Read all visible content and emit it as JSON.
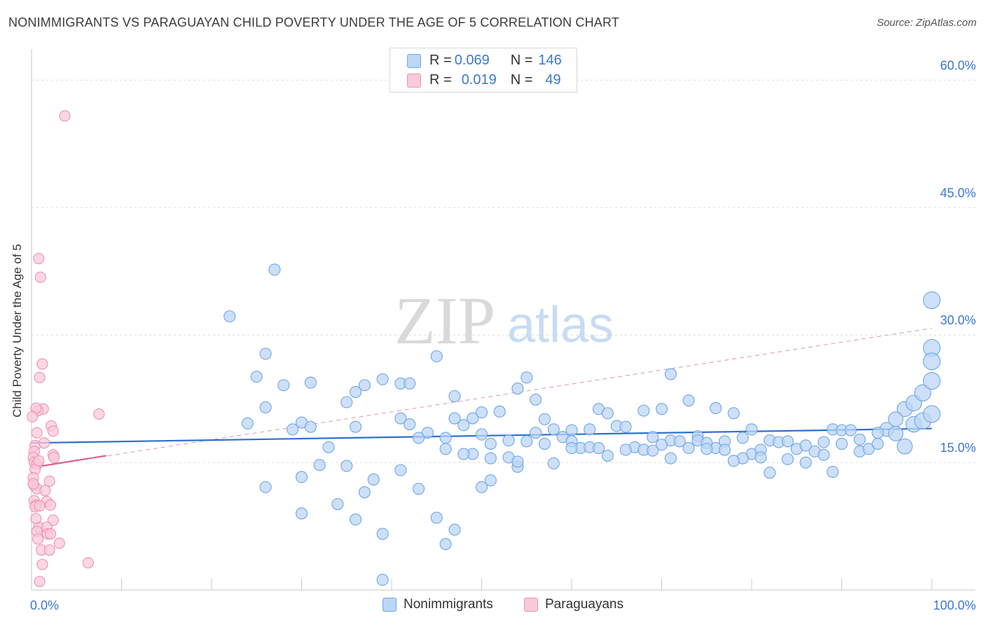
{
  "title": "NONIMMIGRANTS VS PARAGUAYAN CHILD POVERTY UNDER THE AGE OF 5 CORRELATION CHART",
  "source": "Source: ZipAtlas.com",
  "watermark": {
    "zip": "ZIP",
    "atlas": "atlas"
  },
  "stats": [
    {
      "r_label": "R = ",
      "r_value": "0.069",
      "n_label": "N = ",
      "n_value": "146",
      "color": "#6ea6e8",
      "fill": "#bcd6f5"
    },
    {
      "r_label": "R = ",
      "r_value": "0.019",
      "n_label": "N = ",
      "n_value": "49",
      "color": "#f08fb0",
      "fill": "#f9cadb"
    }
  ],
  "legend": [
    {
      "label": "Nonimmigrants",
      "color": "#6ea6e8",
      "fill": "#bcd6f5"
    },
    {
      "label": "Paraguayans",
      "color": "#f08fb0",
      "fill": "#f9cadb"
    }
  ],
  "chart_data": {
    "type": "scatter",
    "title": "NONIMMIGRANTS VS PARAGUAYAN CHILD POVERTY UNDER THE AGE OF 5 CORRELATION CHART",
    "xlabel": "",
    "ylabel": "Child Poverty Under the Age of 5",
    "xlim": [
      0,
      100
    ],
    "ylim": [
      0,
      63
    ],
    "x_tick_labels": [
      {
        "value": 0,
        "label": "0.0%"
      },
      {
        "value": 100,
        "label": "100.0%"
      }
    ],
    "y_tick_labels": [
      {
        "value": 15,
        "label": "15.0%"
      },
      {
        "value": 30,
        "label": "30.0%"
      },
      {
        "value": 45,
        "label": "45.0%"
      },
      {
        "value": 60,
        "label": "60.0%"
      }
    ],
    "grid": true,
    "series": [
      {
        "name": "Nonimmigrants",
        "color": "#6ea6e8",
        "fill": "#bcd6f5",
        "trend": {
          "x0": 0,
          "y0": 17.3,
          "x1": 100,
          "y1": 19.0,
          "style": "solid",
          "color": "#2f6fd0"
        },
        "points": [
          [
            27,
            37.7
          ],
          [
            22,
            32.2
          ],
          [
            26,
            27.8
          ],
          [
            45,
            27.5
          ],
          [
            25,
            25.1
          ],
          [
            28,
            24.1
          ],
          [
            31,
            24.4
          ],
          [
            39,
            24.8
          ],
          [
            37,
            24.1
          ],
          [
            41,
            24.3
          ],
          [
            42,
            24.3
          ],
          [
            47,
            22.8
          ],
          [
            36,
            23.3
          ],
          [
            55,
            25.0
          ],
          [
            54,
            23.7
          ],
          [
            71,
            25.4
          ],
          [
            35,
            22.1
          ],
          [
            26,
            21.5
          ],
          [
            56,
            22.4
          ],
          [
            47,
            20.2
          ],
          [
            41,
            20.2
          ],
          [
            30,
            19.7
          ],
          [
            24,
            19.6
          ],
          [
            31,
            19.2
          ],
          [
            36,
            19.2
          ],
          [
            42,
            19.5
          ],
          [
            49,
            20.2
          ],
          [
            50,
            20.9
          ],
          [
            52,
            21.0
          ],
          [
            57,
            20.1
          ],
          [
            48,
            19.4
          ],
          [
            56,
            18.5
          ],
          [
            60,
            18.8
          ],
          [
            63,
            21.3
          ],
          [
            64,
            20.8
          ],
          [
            58,
            18.9
          ],
          [
            59,
            18.0
          ],
          [
            62,
            18.9
          ],
          [
            65,
            19.3
          ],
          [
            66,
            19.2
          ],
          [
            68,
            21.1
          ],
          [
            70,
            21.3
          ],
          [
            73,
            22.3
          ],
          [
            76,
            21.4
          ],
          [
            78,
            20.8
          ],
          [
            80,
            18.9
          ],
          [
            74,
            18.1
          ],
          [
            69,
            18.0
          ],
          [
            71,
            17.6
          ],
          [
            72,
            17.5
          ],
          [
            67,
            16.8
          ],
          [
            68,
            16.5
          ],
          [
            70,
            17.1
          ],
          [
            61,
            16.7
          ],
          [
            62,
            16.8
          ],
          [
            60,
            17.5
          ],
          [
            57,
            17.2
          ],
          [
            51,
            17.2
          ],
          [
            50,
            18.3
          ],
          [
            53,
            17.6
          ],
          [
            55,
            17.5
          ],
          [
            46,
            17.9
          ],
          [
            44,
            18.5
          ],
          [
            43,
            17.9
          ],
          [
            53,
            15.6
          ],
          [
            54,
            14.5
          ],
          [
            54,
            15.1
          ],
          [
            58,
            14.9
          ],
          [
            49,
            16.0
          ],
          [
            51,
            15.5
          ],
          [
            46,
            16.6
          ],
          [
            48,
            16.0
          ],
          [
            41,
            14.1
          ],
          [
            35,
            14.6
          ],
          [
            32,
            14.7
          ],
          [
            33,
            16.8
          ],
          [
            29,
            18.9
          ],
          [
            26,
            12.1
          ],
          [
            30,
            13.3
          ],
          [
            38,
            13.0
          ],
          [
            34,
            10.1
          ],
          [
            37,
            11.5
          ],
          [
            43,
            11.9
          ],
          [
            50,
            12.1
          ],
          [
            51,
            12.9
          ],
          [
            36,
            8.3
          ],
          [
            45,
            8.5
          ],
          [
            47,
            7.1
          ],
          [
            39,
            6.6
          ],
          [
            46,
            5.4
          ],
          [
            30,
            9.0
          ],
          [
            39,
            1.2
          ],
          [
            74,
            17.6
          ],
          [
            75,
            17.3
          ],
          [
            76,
            16.7
          ],
          [
            77,
            17.5
          ],
          [
            79,
            17.9
          ],
          [
            80,
            16.0
          ],
          [
            81,
            16.5
          ],
          [
            82,
            17.6
          ],
          [
            83,
            17.4
          ],
          [
            84,
            17.5
          ],
          [
            85,
            16.6
          ],
          [
            86,
            17.0
          ],
          [
            87,
            16.3
          ],
          [
            88,
            17.4
          ],
          [
            89,
            18.9
          ],
          [
            90,
            18.8
          ],
          [
            91,
            18.8
          ],
          [
            92,
            16.3
          ],
          [
            93,
            16.6
          ],
          [
            94,
            17.2
          ],
          [
            95,
            18.9
          ],
          [
            96,
            18.4
          ],
          [
            97,
            16.9
          ],
          [
            98,
            19.5
          ],
          [
            99,
            19.9
          ],
          [
            100,
            20.7
          ],
          [
            97,
            21.3
          ],
          [
            98,
            22.0
          ],
          [
            99,
            23.2
          ],
          [
            100,
            24.6
          ],
          [
            96,
            20.1
          ],
          [
            94,
            18.5
          ],
          [
            92,
            17.7
          ],
          [
            90,
            17.2
          ],
          [
            88,
            15.9
          ],
          [
            86,
            15.0
          ],
          [
            84,
            15.4
          ],
          [
            82,
            13.8
          ],
          [
            81,
            15.6
          ],
          [
            79,
            15.5
          ],
          [
            77,
            16.5
          ],
          [
            75,
            16.6
          ],
          [
            73,
            16.7
          ],
          [
            69,
            16.4
          ],
          [
            66,
            16.5
          ],
          [
            64,
            15.8
          ],
          [
            63,
            16.7
          ],
          [
            60,
            16.7
          ],
          [
            78,
            15.2
          ],
          [
            89,
            13.9
          ],
          [
            100,
            28.5
          ],
          [
            100,
            34.1
          ],
          [
            100,
            26.9
          ],
          [
            71,
            15.5
          ]
        ]
      },
      {
        "name": "Paraguayans",
        "color": "#f08fb0",
        "fill": "#f9cadb",
        "trend": {
          "x0": 0,
          "y0": 14.4,
          "x1": 8.3,
          "y1": 15.8,
          "style": "solid",
          "color": "#e0608a"
        },
        "trend_extended": {
          "x0": 0,
          "y0": 14.4,
          "x1": 100,
          "y1": 30.8,
          "style": "dashed",
          "color": "#e890b0"
        },
        "points": [
          [
            3.7,
            55.8
          ],
          [
            0.8,
            39.0
          ],
          [
            1.0,
            36.8
          ],
          [
            1.2,
            26.6
          ],
          [
            0.9,
            25.0
          ],
          [
            1.3,
            21.3
          ],
          [
            0.7,
            21.1
          ],
          [
            0.5,
            21.4
          ],
          [
            7.5,
            20.7
          ],
          [
            2.2,
            19.3
          ],
          [
            2.4,
            18.7
          ],
          [
            0.6,
            18.5
          ],
          [
            0.4,
            17.0
          ],
          [
            0.3,
            16.3
          ],
          [
            0.2,
            15.6
          ],
          [
            0.3,
            15.0
          ],
          [
            0.6,
            14.8
          ],
          [
            0.4,
            14.2
          ],
          [
            2.4,
            15.9
          ],
          [
            2.5,
            15.6
          ],
          [
            0.2,
            13.2
          ],
          [
            2.0,
            12.8
          ],
          [
            0.3,
            12.3
          ],
          [
            0.6,
            11.9
          ],
          [
            1.5,
            11.7
          ],
          [
            0.3,
            10.5
          ],
          [
            1.7,
            10.4
          ],
          [
            2.1,
            10.0
          ],
          [
            0.5,
            10.0
          ],
          [
            0.4,
            9.8
          ],
          [
            0.9,
            9.9
          ],
          [
            2.4,
            8.2
          ],
          [
            0.8,
            7.4
          ],
          [
            1.7,
            7.4
          ],
          [
            0.6,
            6.9
          ],
          [
            1.8,
            6.6
          ],
          [
            2.1,
            6.6
          ],
          [
            0.7,
            6.0
          ],
          [
            3.1,
            5.5
          ],
          [
            1.1,
            4.7
          ],
          [
            2.0,
            4.7
          ],
          [
            1.2,
            3.0
          ],
          [
            6.3,
            3.2
          ],
          [
            0.9,
            1.0
          ],
          [
            0.1,
            20.4
          ],
          [
            0.2,
            12.5
          ],
          [
            1.4,
            17.3
          ],
          [
            0.8,
            15.2
          ],
          [
            0.5,
            8.4
          ]
        ]
      }
    ]
  }
}
